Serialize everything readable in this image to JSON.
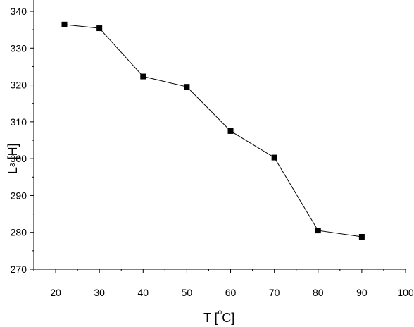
{
  "chart_data": {
    "type": "line",
    "xlabel": {
      "prefix": "T [",
      "degree": "o",
      "suffix": "C]"
    },
    "ylabel": {
      "prefix": "L",
      "sub": "3",
      "suffix": " [H]"
    },
    "xlim": [
      15,
      100
    ],
    "ylim": [
      270,
      340
    ],
    "x_ticks": [
      "20",
      "30",
      "40",
      "50",
      "60",
      "70",
      "80",
      "90",
      "100"
    ],
    "y_ticks": [
      "270",
      "280",
      "290",
      "300",
      "310",
      "320",
      "330",
      "340"
    ],
    "grid": false,
    "series": [
      {
        "x": [
          22,
          30,
          40,
          50,
          60,
          70,
          80,
          90
        ],
        "values": [
          336.4,
          335.4,
          322.3,
          319.5,
          307.5,
          300.3,
          280.5,
          278.8
        ],
        "marker": "square",
        "color": "#000000"
      }
    ]
  }
}
